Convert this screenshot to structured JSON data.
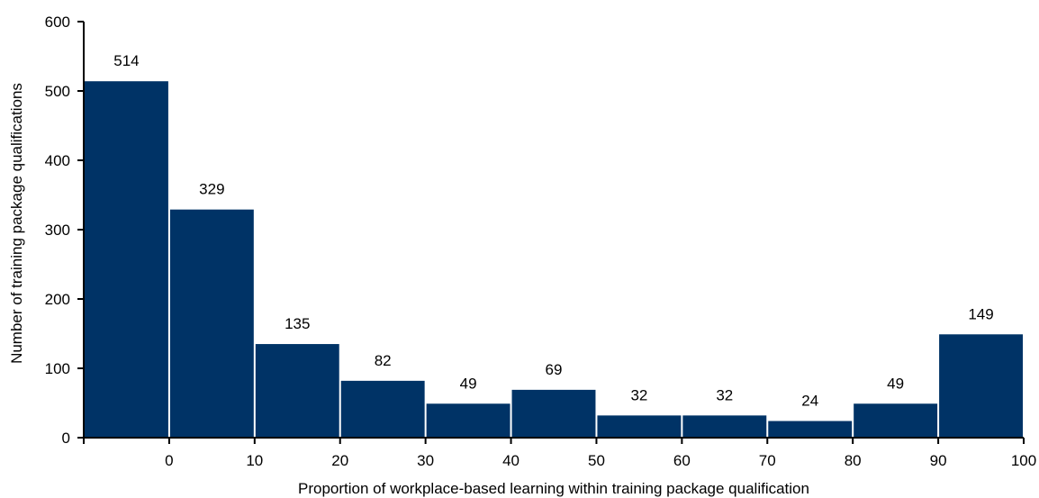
{
  "chart_data": {
    "type": "bar",
    "categories": [
      "<0",
      "0-10",
      "10-20",
      "20-30",
      "30-40",
      "40-50",
      "50-60",
      "60-70",
      "70-80",
      "80-90",
      "90-100"
    ],
    "values": [
      514,
      329,
      135,
      82,
      49,
      69,
      32,
      32,
      24,
      49,
      149
    ],
    "data_labels": [
      "514",
      "329",
      "135",
      "82",
      "49",
      "69",
      "32",
      "32",
      "24",
      "49",
      "149"
    ],
    "x_tick_labels": [
      "0",
      "10",
      "20",
      "30",
      "40",
      "50",
      "60",
      "70",
      "80",
      "90",
      "100"
    ],
    "y_tick_labels": [
      "0",
      "100",
      "200",
      "300",
      "400",
      "500",
      "600"
    ],
    "y_ticks": [
      0,
      100,
      200,
      300,
      400,
      500,
      600
    ],
    "xlabel": "Proportion of workplace-based learning within training package qualification",
    "ylabel": "Number of  training package qualifications",
    "ylim": [
      0,
      600
    ],
    "grid": false,
    "bar_color": "#003366"
  }
}
